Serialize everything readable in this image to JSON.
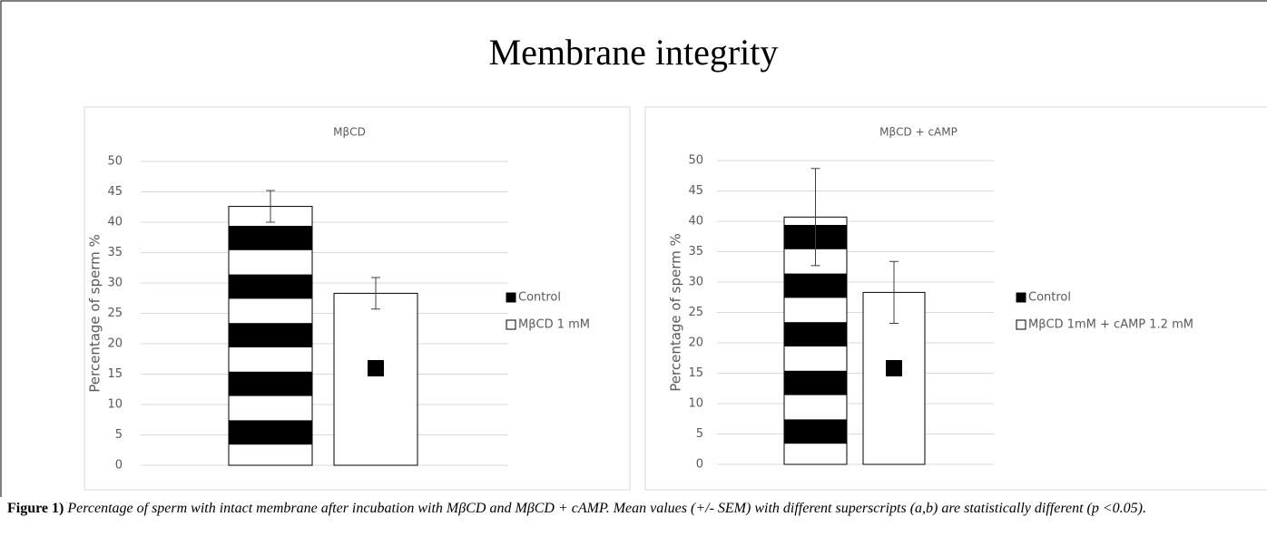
{
  "figure_title": "Membrane integrity",
  "chart_data": [
    {
      "type": "bar",
      "title": "MβCD",
      "ylabel": "Percentage of sperm %",
      "categories": [
        null
      ],
      "series": [
        {
          "name": "Control",
          "color": "#000000",
          "pattern": "horizontal-stripes",
          "values": [
            42.6
          ],
          "errors": [
            2.6
          ]
        },
        {
          "name": "MβCD 1 mM",
          "color": "#ffffff",
          "values": [
            28.3
          ],
          "errors": [
            2.6
          ]
        }
      ],
      "ylim": [
        0,
        50
      ],
      "yticks": [
        0,
        5,
        10,
        15,
        20,
        25,
        30,
        35,
        40,
        45,
        50
      ],
      "grid": true,
      "legend": "right"
    },
    {
      "type": "bar",
      "title": "MβCD + cAMP",
      "ylabel": "Percentage of sperm %",
      "categories": [
        null
      ],
      "series": [
        {
          "name": "Control",
          "color": "#000000",
          "pattern": "horizontal-stripes",
          "values": [
            40.7
          ],
          "errors": [
            8.0
          ]
        },
        {
          "name": "MβCD 1mM + cAMP 1.2 mM",
          "color": "#ffffff",
          "values": [
            28.3
          ],
          "errors": [
            5.1
          ]
        }
      ],
      "ylim": [
        0,
        50
      ],
      "yticks": [
        0,
        5,
        10,
        15,
        20,
        25,
        30,
        35,
        40,
        45,
        50
      ],
      "grid": true,
      "legend": "right"
    }
  ],
  "caption": {
    "label": "Figure 1)",
    "text": "Percentage of sperm with intact membrane after incubation with MβCD and MβCD + cAMP. Mean values (+/- SEM) with different superscripts (a,b) are statistically different (p <0.05)."
  }
}
